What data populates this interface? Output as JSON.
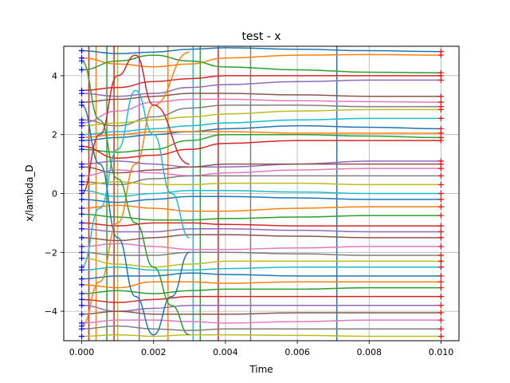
{
  "chart_data": {
    "type": "line",
    "title": "test - x",
    "xlabel": "Time",
    "ylabel": "x/lambda_D",
    "xlim": [
      -0.0005,
      0.0105
    ],
    "ylim": [
      -5,
      5
    ],
    "xticks": [
      0.0,
      0.002,
      0.004,
      0.006,
      0.008,
      0.01
    ],
    "xtick_labels": [
      "0.000",
      "0.002",
      "0.004",
      "0.006",
      "0.008",
      "0.010"
    ],
    "yticks": [
      -4,
      -2,
      0,
      2,
      4
    ],
    "ytick_labels": [
      "−4",
      "−2",
      "0",
      "2",
      "4"
    ],
    "grid": true,
    "start_marker_color": "#0000ff",
    "end_marker_color": "#ff0000",
    "series_colors": [
      "#1f77b4",
      "#ff7f0e",
      "#2ca02c",
      "#d62728",
      "#9467bd",
      "#8c564b",
      "#e377c2",
      "#7f7f7f",
      "#bcbd22",
      "#17becf"
    ],
    "vertical_wraps": [
      {
        "time": 0.0002,
        "color": "#d62728"
      },
      {
        "time": 0.0004,
        "color": "#ff7f0e"
      },
      {
        "time": 0.0007,
        "color": "#2ca02c"
      },
      {
        "time": 0.0009,
        "color": "#d62728"
      },
      {
        "time": 0.001,
        "color": "#bcbd22"
      },
      {
        "time": 0.0016,
        "color": "#9467bd"
      },
      {
        "time": 0.0024,
        "color": "#ff7f0e"
      },
      {
        "time": 0.0031,
        "color": "#17becf"
      },
      {
        "time": 0.0033,
        "color": "#2ca02c"
      },
      {
        "time": 0.0038,
        "color": "#d62728"
      },
      {
        "time": 0.0047,
        "color": "#7f7f7f"
      },
      {
        "time": 0.0071,
        "color": "#1f77b4"
      }
    ],
    "series": [
      {
        "x": [
          0,
          0.001,
          0.002,
          0.003,
          0.004,
          0.006,
          0.008,
          0.01
        ],
        "y": [
          4.85,
          4.75,
          4.8,
          4.9,
          4.95,
          4.9,
          4.85,
          4.82
        ]
      },
      {
        "x": [
          0,
          0.001,
          0.002,
          0.003,
          0.004,
          0.006,
          0.008,
          0.01
        ],
        "y": [
          4.6,
          4.4,
          4.3,
          4.4,
          4.6,
          4.7,
          4.72,
          4.7
        ]
      },
      {
        "x": [
          0,
          0.001,
          0.002,
          0.003,
          0.004,
          0.006,
          0.008,
          0.01
        ],
        "y": [
          4.2,
          4.5,
          4.7,
          4.5,
          4.3,
          4.2,
          4.12,
          4.1
        ]
      },
      {
        "x": [
          0,
          0.001,
          0.002,
          0.003,
          0.004,
          0.006,
          0.008,
          0.01
        ],
        "y": [
          3.5,
          3.6,
          3.8,
          3.9,
          4.0,
          4.0,
          4.0,
          4.0
        ]
      },
      {
        "x": [
          0,
          0.001,
          0.002,
          0.003,
          0.004,
          0.006,
          0.008,
          0.01
        ],
        "y": [
          3.4,
          3.3,
          3.4,
          3.6,
          3.7,
          3.8,
          3.85,
          3.85
        ]
      },
      {
        "x": [
          0,
          0.001,
          0.002,
          0.003,
          0.004,
          0.006,
          0.008,
          0.01
        ],
        "y": [
          3.1,
          3.2,
          3.3,
          3.4,
          3.4,
          3.35,
          3.3,
          3.3
        ]
      },
      {
        "x": [
          0,
          0.001,
          0.002,
          0.003,
          0.004,
          0.006,
          0.008,
          0.01
        ],
        "y": [
          2.4,
          2.8,
          3.1,
          3.2,
          3.2,
          3.15,
          3.12,
          3.1
        ]
      },
      {
        "x": [
          0,
          0.001,
          0.002,
          0.003,
          0.004,
          0.006,
          0.008,
          0.01
        ],
        "y": [
          2.5,
          2.3,
          2.6,
          2.9,
          3.0,
          3.0,
          2.95,
          2.95
        ]
      },
      {
        "x": [
          0,
          0.001,
          0.002,
          0.003,
          0.004,
          0.006,
          0.008,
          0.01
        ],
        "y": [
          2.3,
          2.4,
          2.5,
          2.6,
          2.7,
          2.8,
          2.85,
          2.85
        ]
      },
      {
        "x": [
          0,
          0.001,
          0.002,
          0.003,
          0.004,
          0.006,
          0.008,
          0.01
        ],
        "y": [
          2.0,
          2.1,
          2.2,
          2.3,
          2.4,
          2.5,
          2.55,
          2.55
        ]
      },
      {
        "x": [
          0,
          0.001,
          0.002,
          0.003,
          0.004,
          0.006,
          0.008,
          0.01
        ],
        "y": [
          1.8,
          1.9,
          2.0,
          2.1,
          2.2,
          2.3,
          2.25,
          2.2
        ]
      },
      {
        "x": [
          0,
          0.001,
          0.002,
          0.003,
          0.004,
          0.006,
          0.008,
          0.01
        ],
        "y": [
          1.9,
          2.0,
          2.1,
          2.1,
          2.1,
          2.05,
          2.05,
          2.05
        ]
      },
      {
        "x": [
          0,
          0.001,
          0.002,
          0.003,
          0.004,
          0.006,
          0.008,
          0.01
        ],
        "y": [
          1.5,
          1.4,
          1.5,
          1.8,
          2.0,
          2.0,
          1.95,
          1.9
        ]
      },
      {
        "x": [
          0,
          0.001,
          0.002,
          0.003,
          0.004,
          0.006,
          0.008,
          0.01
        ],
        "y": [
          1.6,
          1.2,
          1.3,
          1.5,
          1.7,
          1.8,
          1.8,
          1.8
        ]
      },
      {
        "x": [
          0,
          0.001,
          0.002,
          0.003,
          0.004,
          0.006,
          0.008,
          0.01
        ],
        "y": [
          1.0,
          1.1,
          1.0,
          0.9,
          0.9,
          1.0,
          1.1,
          1.1
        ]
      },
      {
        "x": [
          0,
          0.001,
          0.002,
          0.003,
          0.004,
          0.006,
          0.008,
          0.01
        ],
        "y": [
          0.9,
          0.7,
          0.8,
          0.9,
          1.0,
          1.0,
          1.0,
          1.0
        ]
      },
      {
        "x": [
          0,
          0.001,
          0.002,
          0.003,
          0.004,
          0.006,
          0.008,
          0.01
        ],
        "y": [
          0.6,
          0.8,
          0.7,
          0.6,
          0.7,
          0.8,
          0.85,
          0.85
        ]
      },
      {
        "x": [
          0,
          0.001,
          0.002,
          0.003,
          0.004,
          0.006,
          0.008,
          0.01
        ],
        "y": [
          0.4,
          0.3,
          0.5,
          0.6,
          0.6,
          0.6,
          0.6,
          0.6
        ]
      },
      {
        "x": [
          0,
          0.001,
          0.002,
          0.003,
          0.004,
          0.006,
          0.008,
          0.01
        ],
        "y": [
          0.3,
          0.4,
          0.3,
          0.3,
          0.35,
          0.35,
          0.3,
          0.3
        ]
      },
      {
        "x": [
          0,
          0.001,
          0.002,
          0.003,
          0.004,
          0.006,
          0.008,
          0.01
        ],
        "y": [
          0.1,
          -0.1,
          0.0,
          0.1,
          0.1,
          0.05,
          0.0,
          0.0
        ]
      },
      {
        "x": [
          0,
          0.001,
          0.002,
          0.003,
          0.004,
          0.006,
          0.008,
          0.01
        ],
        "y": [
          -0.2,
          -0.3,
          -0.2,
          -0.1,
          -0.1,
          -0.15,
          -0.2,
          -0.2
        ]
      },
      {
        "x": [
          0,
          0.001,
          0.002,
          0.003,
          0.004,
          0.006,
          0.008,
          0.01
        ],
        "y": [
          -0.5,
          -0.4,
          -0.5,
          -0.6,
          -0.6,
          -0.5,
          -0.45,
          -0.45
        ]
      },
      {
        "x": [
          0,
          0.001,
          0.002,
          0.003,
          0.004,
          0.006,
          0.008,
          0.01
        ],
        "y": [
          -0.7,
          -0.8,
          -0.9,
          -0.9,
          -0.85,
          -0.8,
          -0.75,
          -0.75
        ]
      },
      {
        "x": [
          0,
          0.001,
          0.002,
          0.003,
          0.004,
          0.006,
          0.008,
          0.01
        ],
        "y": [
          -1.0,
          -1.1,
          -1.0,
          -1.0,
          -1.05,
          -1.1,
          -1.1,
          -1.1
        ]
      },
      {
        "x": [
          0,
          0.001,
          0.002,
          0.003,
          0.004,
          0.006,
          0.008,
          0.01
        ],
        "y": [
          -1.2,
          -1.3,
          -1.3,
          -1.2,
          -1.2,
          -1.25,
          -1.3,
          -1.3
        ]
      },
      {
        "x": [
          0,
          0.001,
          0.002,
          0.003,
          0.004,
          0.006,
          0.008,
          0.01
        ],
        "y": [
          -1.5,
          -1.6,
          -1.5,
          -1.4,
          -1.4,
          -1.45,
          -1.5,
          -1.5
        ]
      },
      {
        "x": [
          0,
          0.001,
          0.002,
          0.003,
          0.004,
          0.006,
          0.008,
          0.01
        ],
        "y": [
          -1.8,
          -1.7,
          -1.8,
          -1.9,
          -1.9,
          -1.85,
          -1.8,
          -1.8
        ]
      },
      {
        "x": [
          0,
          0.001,
          0.002,
          0.003,
          0.004,
          0.006,
          0.008,
          0.01
        ],
        "y": [
          -2.0,
          -2.1,
          -2.1,
          -2.0,
          -2.0,
          -2.05,
          -2.1,
          -2.1
        ]
      },
      {
        "x": [
          0,
          0.001,
          0.002,
          0.003,
          0.004,
          0.006,
          0.008,
          0.01
        ],
        "y": [
          -2.2,
          -2.4,
          -2.5,
          -2.4,
          -2.3,
          -2.3,
          -2.3,
          -2.3
        ]
      },
      {
        "x": [
          0,
          0.001,
          0.002,
          0.003,
          0.004,
          0.006,
          0.008,
          0.01
        ],
        "y": [
          -2.6,
          -2.5,
          -2.6,
          -2.6,
          -2.55,
          -2.5,
          -2.5,
          -2.5
        ]
      },
      {
        "x": [
          0,
          0.001,
          0.002,
          0.003,
          0.004,
          0.006,
          0.008,
          0.01
        ],
        "y": [
          -2.9,
          -2.8,
          -2.8,
          -2.7,
          -2.75,
          -2.8,
          -2.8,
          -2.8
        ]
      },
      {
        "x": [
          0,
          0.001,
          0.002,
          0.003,
          0.004,
          0.006,
          0.008,
          0.01
        ],
        "y": [
          -3.1,
          -3.2,
          -3.0,
          -3.0,
          -3.05,
          -3.0,
          -3.0,
          -3.0
        ]
      },
      {
        "x": [
          0,
          0.001,
          0.002,
          0.003,
          0.004,
          0.006,
          0.008,
          0.01
        ],
        "y": [
          -3.4,
          -3.3,
          -3.4,
          -3.3,
          -3.25,
          -3.25,
          -3.2,
          -3.2
        ]
      },
      {
        "x": [
          0,
          0.001,
          0.002,
          0.003,
          0.004,
          0.006,
          0.008,
          0.01
        ],
        "y": [
          -3.6,
          -3.7,
          -3.6,
          -3.5,
          -3.5,
          -3.5,
          -3.5,
          -3.5
        ]
      },
      {
        "x": [
          0,
          0.001,
          0.002,
          0.003,
          0.004,
          0.006,
          0.008,
          0.01
        ],
        "y": [
          -3.8,
          -4.0,
          -3.9,
          -3.8,
          -3.8,
          -3.8,
          -3.8,
          -3.8
        ]
      },
      {
        "x": [
          0,
          0.001,
          0.002,
          0.003,
          0.004,
          0.006,
          0.008,
          0.01
        ],
        "y": [
          -4.1,
          -4.0,
          -4.1,
          -4.1,
          -4.1,
          -4.05,
          -4.05,
          -4.05
        ]
      },
      {
        "x": [
          0,
          0.001,
          0.002,
          0.003,
          0.004,
          0.006,
          0.008,
          0.01
        ],
        "y": [
          -4.4,
          -4.3,
          -4.3,
          -4.35,
          -4.4,
          -4.35,
          -4.3,
          -4.3
        ]
      },
      {
        "x": [
          0,
          0.001,
          0.002,
          0.003,
          0.004,
          0.006,
          0.008,
          0.01
        ],
        "y": [
          -4.6,
          -4.5,
          -4.6,
          -4.65,
          -4.6,
          -4.6,
          -4.6,
          -4.6
        ]
      },
      {
        "x": [
          0,
          0.001,
          0.002,
          0.003,
          0.004,
          0.006,
          0.008,
          0.01
        ],
        "y": [
          -4.85,
          -4.8,
          -4.85,
          -4.8,
          -4.8,
          -4.82,
          -4.85,
          -4.85
        ]
      },
      {
        "x": [
          0,
          0.0005,
          0.001,
          0.0015,
          0.002,
          0.0025,
          0.003
        ],
        "y": [
          -2.5,
          -0.5,
          1.5,
          3.5,
          2.0,
          0.0,
          -1.5
        ]
      },
      {
        "x": [
          0,
          0.0005,
          0.001,
          0.0015,
          0.002,
          0.0025,
          0.003
        ],
        "y": [
          3.0,
          1.0,
          -1.5,
          -3.5,
          -4.8,
          -3.5,
          -2.0
        ]
      },
      {
        "x": [
          0,
          0.0005,
          0.001,
          0.0015,
          0.002,
          0.003
        ],
        "y": [
          -4.5,
          -3.0,
          -1.0,
          1.0,
          3.0,
          4.8
        ]
      },
      {
        "x": [
          0,
          0.0005,
          0.001,
          0.0015,
          0.002,
          0.0025,
          0.003
        ],
        "y": [
          4.5,
          2.5,
          0.5,
          -1.0,
          -2.5,
          -3.8,
          -4.8
        ]
      },
      {
        "x": [
          0,
          0.0005,
          0.001,
          0.0015,
          0.002,
          0.003
        ],
        "y": [
          0.0,
          2.0,
          4.0,
          4.7,
          3.0,
          1.0
        ]
      }
    ]
  }
}
